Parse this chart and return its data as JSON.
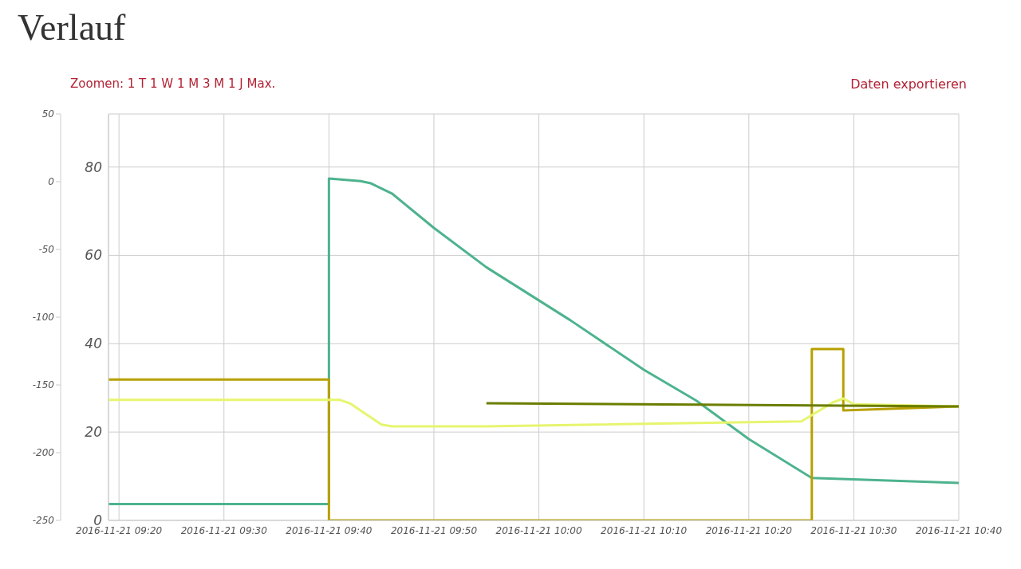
{
  "chart_data": {
    "type": "line",
    "title": "Verlauf",
    "annotations": [
      "Zoomen: 1 T 1 W 1 M 3 M 1 J Max.",
      "Daten exportieren"
    ],
    "xlim": [
      "2016-11-21T09:19",
      "2016-11-21T10:40"
    ],
    "xticks": [
      {
        "value": "2016-11-21T09:20",
        "label": "2016-11-21 09:20"
      },
      {
        "value": "2016-11-21T09:30",
        "label": "2016-11-21 09:30"
      },
      {
        "value": "2016-11-21T09:40",
        "label": "2016-11-21 09:40"
      },
      {
        "value": "2016-11-21T09:50",
        "label": "2016-11-21 09:50"
      },
      {
        "value": "2016-11-21T10:00",
        "label": "2016-11-21 10:00"
      },
      {
        "value": "2016-11-21T10:10",
        "label": "2016-11-21 10:10"
      },
      {
        "value": "2016-11-21T10:20",
        "label": "2016-11-21 10:20"
      },
      {
        "value": "2016-11-21T10:30",
        "label": "2016-11-21 10:30"
      },
      {
        "value": "2016-11-21T10:40",
        "label": "2016-11-21 10:40"
      }
    ],
    "ylim": [
      0,
      92
    ],
    "yticks": [
      0,
      20,
      40,
      60,
      80
    ],
    "y2lim": [
      -250,
      50
    ],
    "y2ticks": [
      -250,
      -200,
      -150,
      -100,
      -50,
      0,
      50
    ],
    "grid": true,
    "marker": "none",
    "line_style": "solid",
    "series": [
      {
        "color": "#4db38e",
        "x": [
          "2016-11-21T09:19",
          "2016-11-21T09:40",
          "2016-11-21T09:40",
          "2016-11-21T09:43",
          "2016-11-21T09:44",
          "2016-11-21T09:46",
          "2016-11-21T09:50",
          "2016-11-21T09:55",
          "2016-11-21T10:03",
          "2016-11-21T10:10",
          "2016-11-21T10:15",
          "2016-11-21T10:20",
          "2016-11-21T10:26",
          "2016-11-21T10:40"
        ],
        "values": [
          3.7,
          3.7,
          77.4,
          76.8,
          76.3,
          74.0,
          66.2,
          57.3,
          45.3,
          34.1,
          27.1,
          18.4,
          9.6,
          8.5
        ]
      },
      {
        "color": "#b8a000",
        "x": [
          "2016-11-21T09:19",
          "2016-11-21T09:40",
          "2016-11-21T09:40",
          "2016-11-21T10:26",
          "2016-11-21T10:26",
          "2016-11-21T10:29",
          "2016-11-21T10:29",
          "2016-11-21T10:40"
        ],
        "values": [
          31.9,
          31.9,
          0,
          0,
          38.8,
          38.8,
          24.9,
          25.8
        ]
      },
      {
        "color": "#e6f56e",
        "x": [
          "2016-11-21T09:19",
          "2016-11-21T09:41",
          "2016-11-21T09:42",
          "2016-11-21T09:45",
          "2016-11-21T09:46",
          "2016-11-21T09:55",
          "2016-11-21T10:25",
          "2016-11-21T10:28",
          "2016-11-21T10:29",
          "2016-11-21T10:30",
          "2016-11-21T10:40"
        ],
        "values": [
          27.3,
          27.3,
          26.5,
          21.7,
          21.3,
          21.3,
          22.4,
          26.7,
          27.6,
          26.3,
          25.8
        ]
      },
      {
        "color": "#6b7d00",
        "x": [
          "2016-11-21T09:55",
          "2016-11-21T10:40"
        ],
        "values": [
          26.5,
          25.8
        ]
      }
    ]
  }
}
